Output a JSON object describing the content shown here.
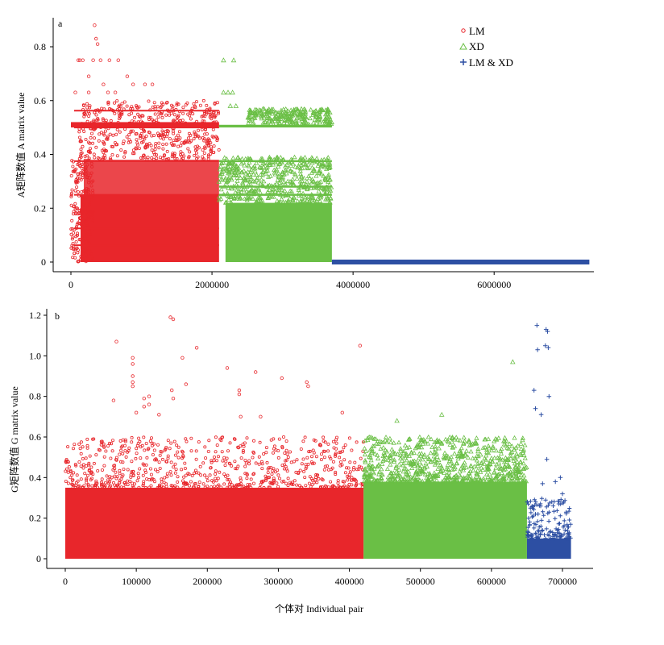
{
  "chart_data": [
    {
      "panel": "a",
      "type": "scatter",
      "ylabel": "A矩阵数值 A matrix value",
      "xlim": [
        0,
        7400000
      ],
      "ylim": [
        0,
        0.9
      ],
      "xticks": [
        "0",
        "2000000",
        "4000000",
        "6000000"
      ],
      "yticks": [
        "0",
        "0.2",
        "0.4",
        "0.6",
        "0.8"
      ],
      "series": [
        {
          "name": "LM",
          "color": "#e8262b",
          "marker": "circle",
          "x_range": [
            0,
            2100000
          ],
          "y_max": 0.88,
          "levels": [
            0,
            0.0625,
            0.125,
            0.25,
            0.375,
            0.5,
            0.5625,
            0.625,
            0.75,
            0.88
          ]
        },
        {
          "name": "XD",
          "color": "#6abf45",
          "marker": "triangle",
          "x_range": [
            2100000,
            3700000
          ],
          "y_max": 0.76,
          "levels": [
            0,
            0.25,
            0.375,
            0.5,
            0.5625,
            0.625,
            0.75
          ]
        },
        {
          "name": "LM & XD",
          "color": "#2d4fa3",
          "marker": "plus",
          "x_range": [
            3700000,
            7350000
          ],
          "y_max": 0.0,
          "levels": [
            0
          ]
        }
      ],
      "legend": "top-right"
    },
    {
      "panel": "b",
      "type": "scatter",
      "ylabel": "G矩阵数值 G matrix value",
      "xlabel": "个体对 Individual pair",
      "xlim": [
        0,
        720000
      ],
      "ylim": [
        0,
        1.2
      ],
      "xticks": [
        "0",
        "100000",
        "200000",
        "300000",
        "400000",
        "500000",
        "600000",
        "700000"
      ],
      "yticks": [
        "0",
        "0.2",
        "0.4",
        "0.6",
        "0.8",
        "1.0",
        "1.2"
      ],
      "series": [
        {
          "name": "LM",
          "color": "#e8262b",
          "marker": "circle",
          "x_range": [
            0,
            420000
          ],
          "dense_max": 0.35,
          "sparse_max": 0.6,
          "outliers_max": 1.19
        },
        {
          "name": "XD",
          "color": "#6abf45",
          "marker": "triangle",
          "x_range": [
            420000,
            650000
          ],
          "dense_max": 0.38,
          "sparse_max": 0.6,
          "outliers_max": 0.97
        },
        {
          "name": "LM & XD",
          "color": "#2d4fa3",
          "marker": "plus",
          "x_range": [
            650000,
            712000
          ],
          "dense_max": 0.1,
          "sparse_max": 0.3,
          "outliers_max": 1.15
        }
      ]
    }
  ],
  "labels": {
    "panel_a": "a",
    "panel_b": "b",
    "legend": [
      "LM",
      "XD",
      "LM & XD"
    ]
  }
}
